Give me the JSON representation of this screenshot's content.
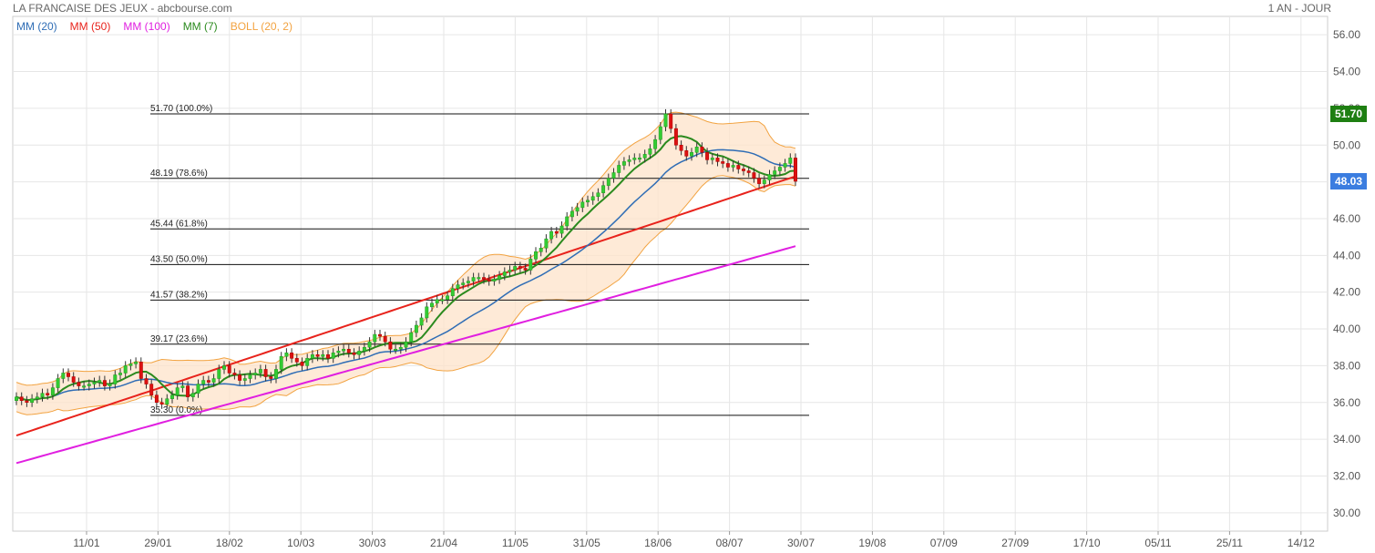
{
  "header": {
    "title": "LA FRANCAISE DES JEUX - abcbourse.com",
    "period": "1 AN - JOUR"
  },
  "legend": [
    {
      "label": "MM (20)",
      "color": "#2f6db5"
    },
    {
      "label": "MM (50)",
      "color": "#e8231c"
    },
    {
      "label": "MM (100)",
      "color": "#e01fe0"
    },
    {
      "label": "MM (7)",
      "color": "#2b8a1e"
    },
    {
      "label": "BOLL (20, 2)",
      "color": "#f2a341"
    }
  ],
  "price_tags": [
    {
      "value": "51.70",
      "color": "#1e7f12",
      "price": 51.7
    },
    {
      "value": "48.03",
      "color": "#3b7de0",
      "price": 48.03
    }
  ],
  "chart_data": {
    "type": "line",
    "y_range": [
      29,
      57
    ],
    "y_ticks": [
      "30.00",
      "32.00",
      "34.00",
      "36.00",
      "38.00",
      "40.00",
      "42.00",
      "44.00",
      "46.00",
      "48.00",
      "50.00",
      "52.00",
      "54.00",
      "56.00"
    ],
    "x_ticks": [
      "11/01",
      "29/01",
      "18/02",
      "10/03",
      "30/03",
      "21/04",
      "11/05",
      "31/05",
      "18/06",
      "08/07",
      "30/07",
      "19/08",
      "07/09",
      "27/09",
      "17/10",
      "05/11",
      "25/11",
      "14/12"
    ],
    "fibonacci": [
      {
        "label": "51.70  (100.0%)",
        "price": 51.7
      },
      {
        "label": "48.19  (78.6%)",
        "price": 48.19
      },
      {
        "label": "45.44  (61.8%)",
        "price": 45.44
      },
      {
        "label": "43.50  (50.0%)",
        "price": 43.5
      },
      {
        "label": "41.57  (38.2%)",
        "price": 41.57
      },
      {
        "label": "39.17  (23.6%)",
        "price": 39.17
      },
      {
        "label": "35.30  (0.0%)",
        "price": 35.3
      }
    ],
    "close": [
      36.3,
      36.1,
      36.0,
      36.2,
      36.3,
      36.5,
      36.4,
      36.8,
      37.3,
      37.6,
      37.4,
      37.1,
      36.9,
      36.9,
      37.0,
      37.1,
      37.2,
      36.9,
      37.0,
      37.5,
      37.6,
      38.0,
      38.1,
      38.2,
      37.3,
      37.0,
      36.4,
      36.0,
      35.9,
      36.2,
      36.4,
      36.8,
      36.9,
      36.3,
      36.5,
      37.0,
      37.2,
      37.1,
      37.3,
      37.8,
      38.0,
      37.6,
      37.5,
      37.2,
      37.3,
      37.5,
      37.6,
      37.8,
      37.4,
      37.3,
      37.8,
      38.5,
      38.7,
      38.4,
      38.2,
      38.0,
      38.4,
      38.6,
      38.5,
      38.6,
      38.4,
      38.7,
      38.8,
      38.9,
      38.7,
      38.6,
      38.8,
      39.0,
      39.3,
      39.7,
      39.6,
      39.3,
      38.9,
      38.9,
      39.0,
      39.3,
      39.8,
      40.2,
      40.6,
      41.2,
      41.4,
      41.6,
      41.6,
      41.8,
      42.2,
      42.4,
      42.5,
      42.6,
      42.8,
      42.8,
      42.7,
      42.6,
      42.7,
      42.9,
      43.1,
      43.2,
      43.4,
      43.3,
      43.2,
      43.8,
      44.2,
      44.4,
      44.9,
      45.3,
      45.2,
      45.6,
      46.1,
      46.4,
      46.6,
      46.9,
      47.0,
      47.2,
      47.4,
      47.8,
      48.2,
      48.5,
      48.9,
      49.1,
      49.2,
      49.3,
      49.3,
      49.5,
      49.8,
      50.3,
      51.0,
      51.7,
      50.9,
      50.0,
      49.7,
      49.4,
      49.6,
      49.9,
      49.6,
      49.2,
      49.3,
      49.1,
      49.0,
      48.8,
      48.9,
      48.7,
      48.6,
      48.5,
      48.2,
      47.9,
      48.1,
      48.4,
      48.6,
      48.8,
      49.0,
      49.3,
      48.03
    ]
  }
}
